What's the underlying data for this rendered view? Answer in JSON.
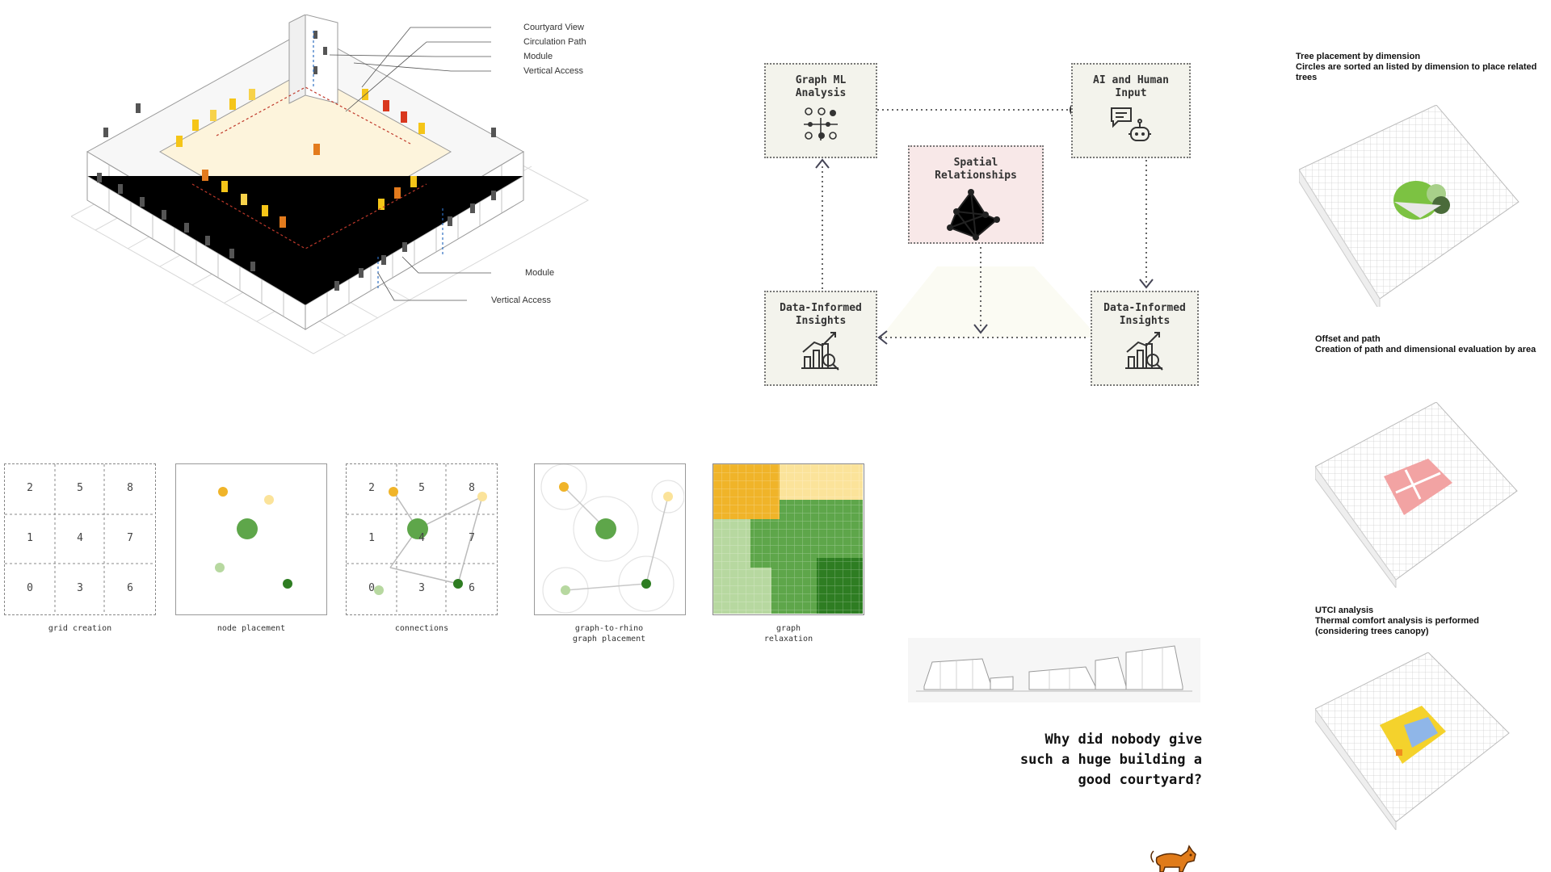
{
  "axon": {
    "callouts": [
      "Courtyard View",
      "Circulation Path",
      "Module",
      "Vertical Access",
      "Module",
      "Vertical Access"
    ]
  },
  "flow": {
    "graph_ml": "Graph ML Analysis",
    "ai_human": "AI and Human Input",
    "spatial": "Spatial Relationships",
    "insights_left": "Data-Informed Insights",
    "insights_right": "Data-Informed Insights"
  },
  "panels": {
    "grid_numbers": [
      "2",
      "5",
      "8",
      "1",
      "4",
      "7",
      "0",
      "3",
      "6"
    ],
    "labels": {
      "grid": "grid creation",
      "nodes": "node placement",
      "connections": "connections",
      "rhino": "graph-to-rhino graph placement",
      "relax": "graph relaxation"
    },
    "relax_colors": {
      "yellow": "#f0b429",
      "light_yellow": "#fbe39a",
      "light_green": "#b7d8a0",
      "green": "#5ea64a",
      "dark_green": "#2e7d22"
    }
  },
  "right_notes": {
    "tree_title": "Tree placement by dimension",
    "tree_sub": "Circles are sorted an listed by dimension to place related trees",
    "offset_title": "Offset and path",
    "offset_sub": "Creation of path and dimensional evaluation by area",
    "utci_title": "UTCI analysis",
    "utci_sub": "Thermal comfort analysis is performed (considering trees canopy)"
  },
  "question": "Why did nobody give such a huge building a good courtyard?"
}
